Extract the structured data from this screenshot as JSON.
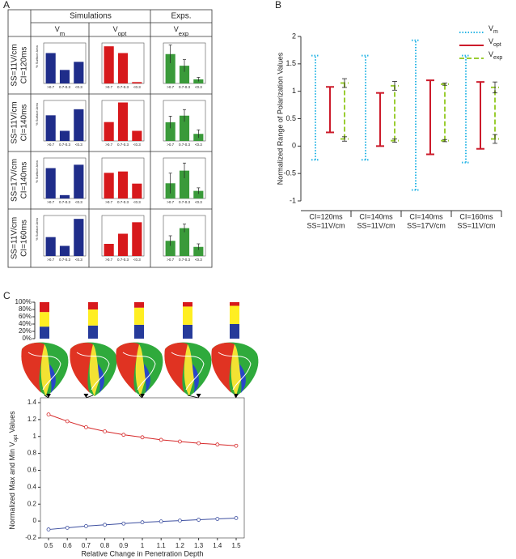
{
  "panel_labels": [
    "A",
    "B",
    "C"
  ],
  "panel_a": {
    "headers": [
      "Simulations",
      "Exps."
    ],
    "columns": [
      [
        "V",
        "m"
      ],
      [
        "V",
        "opt"
      ],
      [
        "V",
        "exp"
      ]
    ],
    "rows": [
      [
        "SS=11V/cm",
        "CI=120ms"
      ],
      [
        "SS=11V/cm",
        "CI=140ms"
      ],
      [
        "SS=17V/cm",
        "CI=140ms"
      ],
      [
        "SS=11V/cm",
        "CI=160ms"
      ]
    ],
    "ylabel": "% Surface Area"
  },
  "chart_data": [
    {
      "type": "bar",
      "categories": [
        ">0.7",
        "0.7-0.3",
        "<0.3"
      ],
      "values": [
        45,
        20,
        32
      ],
      "color": "#1f2d8a",
      "ylim": [
        0,
        60
      ]
    },
    {
      "type": "bar",
      "categories": [
        ">0.7",
        "0.7-0.3",
        "<0.3"
      ],
      "values": [
        55,
        45,
        2
      ],
      "color": "#d7191c",
      "ylim": [
        0,
        60
      ]
    },
    {
      "type": "bar",
      "categories": [
        ">0.7",
        "0.7-0.3",
        "<0.3"
      ],
      "values": [
        58,
        35,
        8
      ],
      "errors": [
        18,
        12,
        4
      ],
      "color": "#3a9a3a",
      "ylim": [
        0,
        80
      ]
    },
    {
      "type": "bar",
      "categories": [
        ">0.7",
        "0.7-0.3",
        "<0.3"
      ],
      "values": [
        38,
        15,
        47
      ],
      "color": "#1f2d8a",
      "ylim": [
        0,
        60
      ]
    },
    {
      "type": "bar",
      "categories": [
        ">0.7",
        "0.7-0.3",
        "<0.3"
      ],
      "values": [
        28,
        57,
        15
      ],
      "color": "#d7191c",
      "ylim": [
        0,
        60
      ]
    },
    {
      "type": "bar",
      "categories": [
        ">0.7",
        "0.7-0.3",
        "<0.3"
      ],
      "values": [
        37,
        50,
        14
      ],
      "errors": [
        12,
        12,
        8
      ],
      "color": "#3a9a3a",
      "ylim": [
        0,
        80
      ]
    },
    {
      "type": "bar",
      "categories": [
        ">0.7",
        "0.7-0.3",
        "<0.3"
      ],
      "values": [
        45,
        5,
        50
      ],
      "color": "#1f2d8a",
      "ylim": [
        0,
        60
      ]
    },
    {
      "type": "bar",
      "categories": [
        ">0.7",
        "0.7-0.3",
        "<0.3"
      ],
      "values": [
        38,
        40,
        22
      ],
      "color": "#d7191c",
      "ylim": [
        0,
        60
      ]
    },
    {
      "type": "bar",
      "categories": [
        ">0.7",
        "0.7-0.3",
        "<0.3"
      ],
      "values": [
        30,
        55,
        15
      ],
      "errors": [
        20,
        15,
        6
      ],
      "color": "#3a9a3a",
      "ylim": [
        0,
        80
      ]
    },
    {
      "type": "bar",
      "categories": [
        ">0.7",
        "0.7-0.3",
        "<0.3"
      ],
      "values": [
        28,
        15,
        55
      ],
      "color": "#1f2d8a",
      "ylim": [
        0,
        60
      ]
    },
    {
      "type": "bar",
      "categories": [
        ">0.7",
        "0.7-0.3",
        "<0.3"
      ],
      "values": [
        18,
        33,
        50
      ],
      "color": "#d7191c",
      "ylim": [
        0,
        60
      ]
    },
    {
      "type": "bar",
      "categories": [
        ">0.7",
        "0.7-0.3",
        "<0.3"
      ],
      "values": [
        30,
        55,
        18
      ],
      "errors": [
        10,
        8,
        6
      ],
      "color": "#3a9a3a",
      "ylim": [
        0,
        80
      ]
    },
    {
      "type": "range",
      "ylabel": "Normalized Range of Polarization Values",
      "categories": [
        [
          "CI=120ms",
          "SS=11V/cm"
        ],
        [
          "CI=140ms",
          "SS=11V/cm"
        ],
        [
          "CI=140ms",
          "SS=17V/cm"
        ],
        [
          "CI=160ms",
          "SS=11V/cm"
        ]
      ],
      "ylim": [
        -1,
        2
      ],
      "yticks": [
        -1,
        -0.5,
        0,
        0.5,
        1,
        1.5,
        2
      ],
      "legend": "top-right",
      "series": [
        {
          "name": [
            "V",
            "m"
          ],
          "color": "#29b6e6",
          "style": "dotted",
          "values": [
            [
              -0.25,
              1.65
            ],
            [
              -0.25,
              1.65
            ],
            [
              -0.8,
              1.93
            ],
            [
              -0.3,
              1.65
            ]
          ]
        },
        {
          "name": [
            "V",
            "opt"
          ],
          "color": "#cc1b2b",
          "style": "solid",
          "values": [
            [
              0.25,
              1.08
            ],
            [
              0,
              0.97
            ],
            [
              -0.15,
              1.2
            ],
            [
              -0.05,
              1.17
            ]
          ]
        },
        {
          "name": [
            "V",
            "exp"
          ],
          "color": "#9acd32",
          "style": "dashed",
          "values": [
            [
              0.13,
              1.15
            ],
            [
              0.1,
              1.1
            ],
            [
              0.1,
              1.13
            ],
            [
              0.13,
              1.07
            ]
          ],
          "errors": [
            [
              0.04,
              0.08
            ],
            [
              0.03,
              0.08
            ],
            [
              0.02,
              0.02
            ],
            [
              0.08,
              0.1
            ]
          ]
        }
      ]
    },
    {
      "type": "stacked-bar",
      "ylim": [
        0,
        100
      ],
      "yticks": [
        {
          "value": 0,
          "label": "0%"
        },
        {
          "value": 20,
          "label": "20%"
        },
        {
          "value": 40,
          "label": "40%"
        },
        {
          "value": 60,
          "label": "60%"
        },
        {
          "value": 80,
          "label": "80%"
        },
        {
          "value": 100,
          "label": "100%"
        }
      ],
      "series": [
        {
          "color": "#263a9a",
          "values": [
            33,
            36,
            38,
            38,
            40
          ]
        },
        {
          "color": "#ffee22",
          "values": [
            40,
            44,
            47,
            50,
            50
          ]
        },
        {
          "color": "#d7191c",
          "values": [
            27,
            20,
            15,
            12,
            10
          ]
        }
      ]
    },
    {
      "type": "line",
      "xlabel": "Relative Change in Penetration Depth",
      "ylabel": [
        "Normalized Max and Min V",
        "opt",
        " Values"
      ],
      "x": [
        0.5,
        0.6,
        0.7,
        0.8,
        0.9,
        1,
        1.1,
        1.2,
        1.3,
        1.4,
        1.5
      ],
      "xlim": [
        0.5,
        1.5
      ],
      "xticks": [
        0.5,
        0.6,
        0.7,
        0.8,
        0.9,
        1,
        1.1,
        1.2,
        1.3,
        1.4,
        1.5
      ],
      "ylim": [
        -0.2,
        1.4
      ],
      "yticks": [
        -0.2,
        0,
        0.2,
        0.4,
        0.6,
        0.8,
        1,
        1.2,
        1.4
      ],
      "series": [
        {
          "color": "#d62728",
          "values": [
            1.26,
            1.18,
            1.11,
            1.06,
            1.02,
            0.99,
            0.96,
            0.94,
            0.92,
            0.905,
            0.89
          ]
        },
        {
          "color": "#3d4fa0",
          "values": [
            -0.1,
            -0.08,
            -0.06,
            -0.045,
            -0.03,
            -0.015,
            -0.005,
            0.005,
            0.015,
            0.025,
            0.035
          ]
        }
      ]
    }
  ]
}
